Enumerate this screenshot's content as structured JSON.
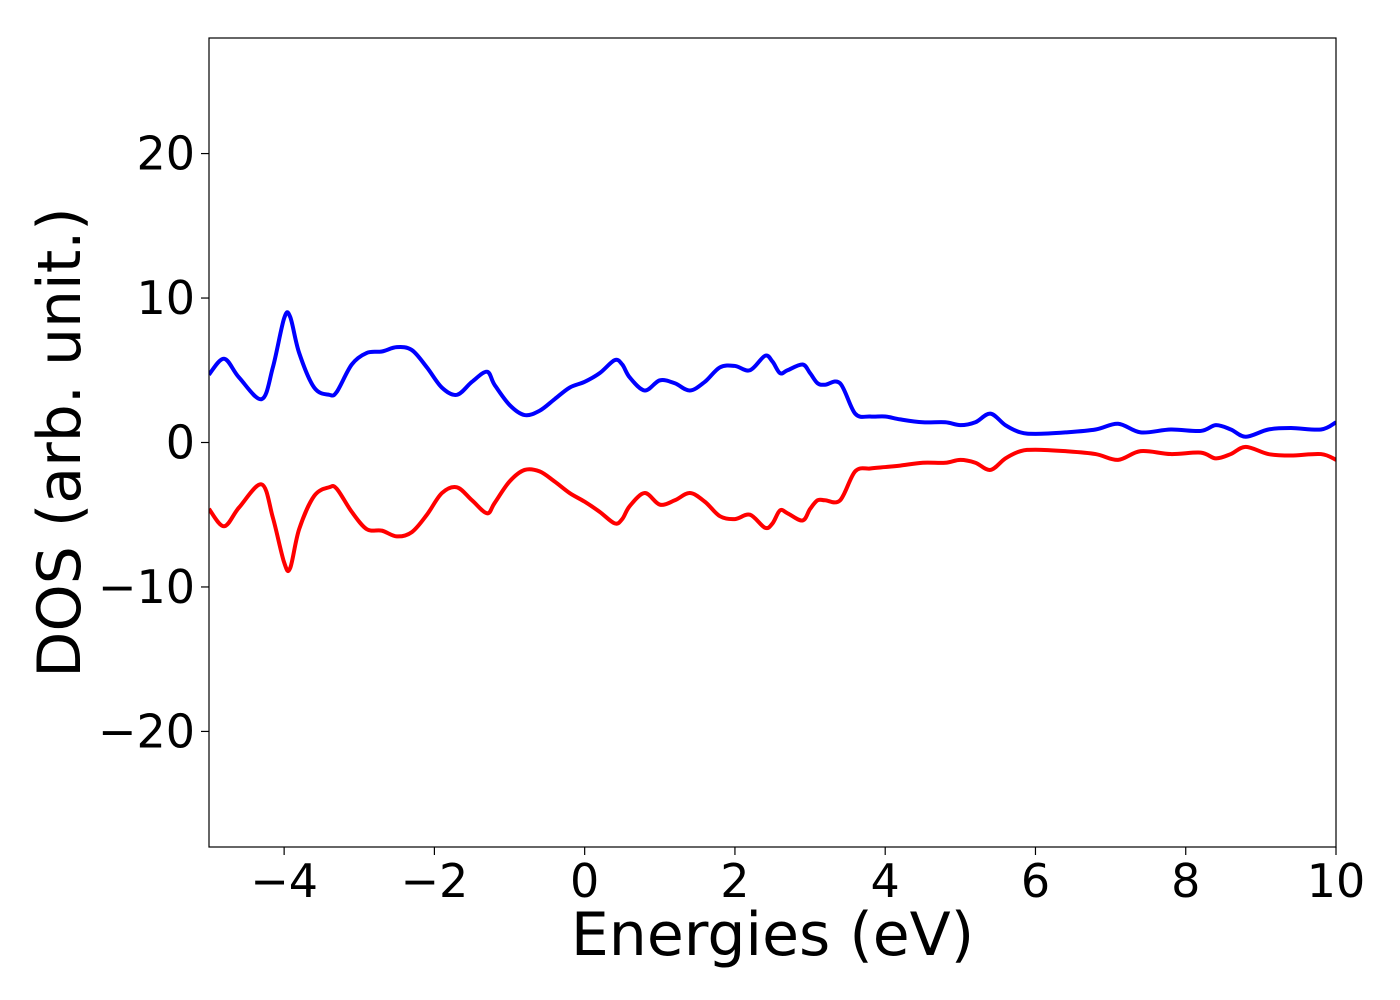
{
  "chart_data": {
    "type": "line",
    "title": "",
    "xlabel": "Energies (eV)",
    "ylabel": "DOS (arb. unit.)",
    "xlim": [
      -5,
      10
    ],
    "ylim": [
      -28,
      28
    ],
    "x_ticks": [
      -4,
      -2,
      0,
      2,
      4,
      6,
      8,
      10
    ],
    "x_tick_labels": [
      "−4",
      "−2",
      "0",
      "2",
      "4",
      "6",
      "8",
      "10"
    ],
    "y_ticks": [
      -20,
      -10,
      0,
      10,
      20
    ],
    "y_tick_labels": [
      "−20",
      "−10",
      "0",
      "10",
      "20"
    ],
    "grid": false,
    "legend": "none",
    "series": [
      {
        "color": "#0000ff",
        "x": [
          -5,
          -4.8,
          -4.6,
          -4.3,
          -4.15,
          -4.0,
          -3.92,
          -3.8,
          -3.6,
          -3.4,
          -3.3,
          -3.1,
          -2.9,
          -2.7,
          -2.5,
          -2.3,
          -2.1,
          -1.9,
          -1.7,
          -1.5,
          -1.3,
          -1.2,
          -1.0,
          -0.8,
          -0.6,
          -0.4,
          -0.2,
          0.0,
          0.2,
          0.4,
          0.5,
          0.6,
          0.8,
          1.0,
          1.2,
          1.4,
          1.6,
          1.8,
          2.0,
          2.2,
          2.4,
          2.5,
          2.6,
          2.7,
          2.9,
          3.0,
          3.1,
          3.2,
          3.4,
          3.6,
          3.8,
          4.0,
          4.2,
          4.5,
          4.8,
          5.0,
          5.2,
          5.4,
          5.6,
          5.8,
          6.0,
          6.4,
          6.8,
          7.1,
          7.4,
          7.8,
          8.2,
          8.4,
          8.6,
          8.8,
          9.1,
          9.4,
          9.8,
          10.0
        ],
        "y": [
          4.7,
          5.8,
          4.5,
          3.0,
          5.2,
          8.6,
          8.7,
          6.2,
          3.8,
          3.3,
          3.5,
          5.4,
          6.2,
          6.3,
          6.6,
          6.4,
          5.2,
          3.8,
          3.3,
          4.2,
          4.9,
          4.0,
          2.6,
          1.9,
          2.2,
          3.0,
          3.8,
          4.2,
          4.8,
          5.7,
          5.4,
          4.5,
          3.6,
          4.3,
          4.1,
          3.6,
          4.2,
          5.2,
          5.3,
          5.0,
          6.0,
          5.6,
          4.8,
          5.0,
          5.4,
          4.8,
          4.1,
          4.0,
          4.1,
          2.0,
          1.8,
          1.8,
          1.6,
          1.4,
          1.4,
          1.2,
          1.4,
          2.0,
          1.2,
          0.7,
          0.6,
          0.7,
          0.9,
          1.3,
          0.7,
          0.9,
          0.8,
          1.2,
          0.9,
          0.4,
          0.9,
          1.0,
          0.9,
          1.4
        ]
      },
      {
        "color": "#ff0000",
        "x": [
          -5,
          -4.8,
          -4.6,
          -4.3,
          -4.15,
          -4.0,
          -3.92,
          -3.8,
          -3.6,
          -3.4,
          -3.3,
          -3.1,
          -2.9,
          -2.7,
          -2.5,
          -2.3,
          -2.1,
          -1.9,
          -1.7,
          -1.5,
          -1.3,
          -1.2,
          -1.0,
          -0.8,
          -0.6,
          -0.4,
          -0.2,
          0.0,
          0.2,
          0.4,
          0.5,
          0.6,
          0.8,
          1.0,
          1.2,
          1.4,
          1.6,
          1.8,
          2.0,
          2.2,
          2.4,
          2.5,
          2.6,
          2.7,
          2.9,
          3.0,
          3.1,
          3.2,
          3.4,
          3.6,
          3.8,
          4.0,
          4.2,
          4.5,
          4.8,
          5.0,
          5.2,
          5.4,
          5.6,
          5.8,
          6.0,
          6.4,
          6.8,
          7.1,
          7.4,
          7.8,
          8.2,
          8.4,
          8.6,
          8.8,
          9.1,
          9.4,
          9.8,
          10.0
        ],
        "y": [
          -4.6,
          -5.8,
          -4.5,
          -2.9,
          -5.2,
          -8.3,
          -8.7,
          -6.0,
          -3.7,
          -3.1,
          -3.2,
          -4.8,
          -6.0,
          -6.1,
          -6.5,
          -6.2,
          -5.0,
          -3.5,
          -3.1,
          -4.0,
          -4.9,
          -4.2,
          -2.7,
          -1.9,
          -2.0,
          -2.7,
          -3.5,
          -4.1,
          -4.8,
          -5.6,
          -5.3,
          -4.4,
          -3.5,
          -4.3,
          -4.0,
          -3.5,
          -4.1,
          -5.1,
          -5.3,
          -5.0,
          -5.9,
          -5.6,
          -4.7,
          -4.9,
          -5.4,
          -4.6,
          -4.0,
          -4.0,
          -4.0,
          -2.0,
          -1.8,
          -1.7,
          -1.6,
          -1.4,
          -1.4,
          -1.2,
          -1.4,
          -1.9,
          -1.1,
          -0.6,
          -0.5,
          -0.6,
          -0.8,
          -1.2,
          -0.6,
          -0.8,
          -0.7,
          -1.1,
          -0.8,
          -0.3,
          -0.8,
          -0.9,
          -0.8,
          -1.2
        ]
      }
    ]
  }
}
